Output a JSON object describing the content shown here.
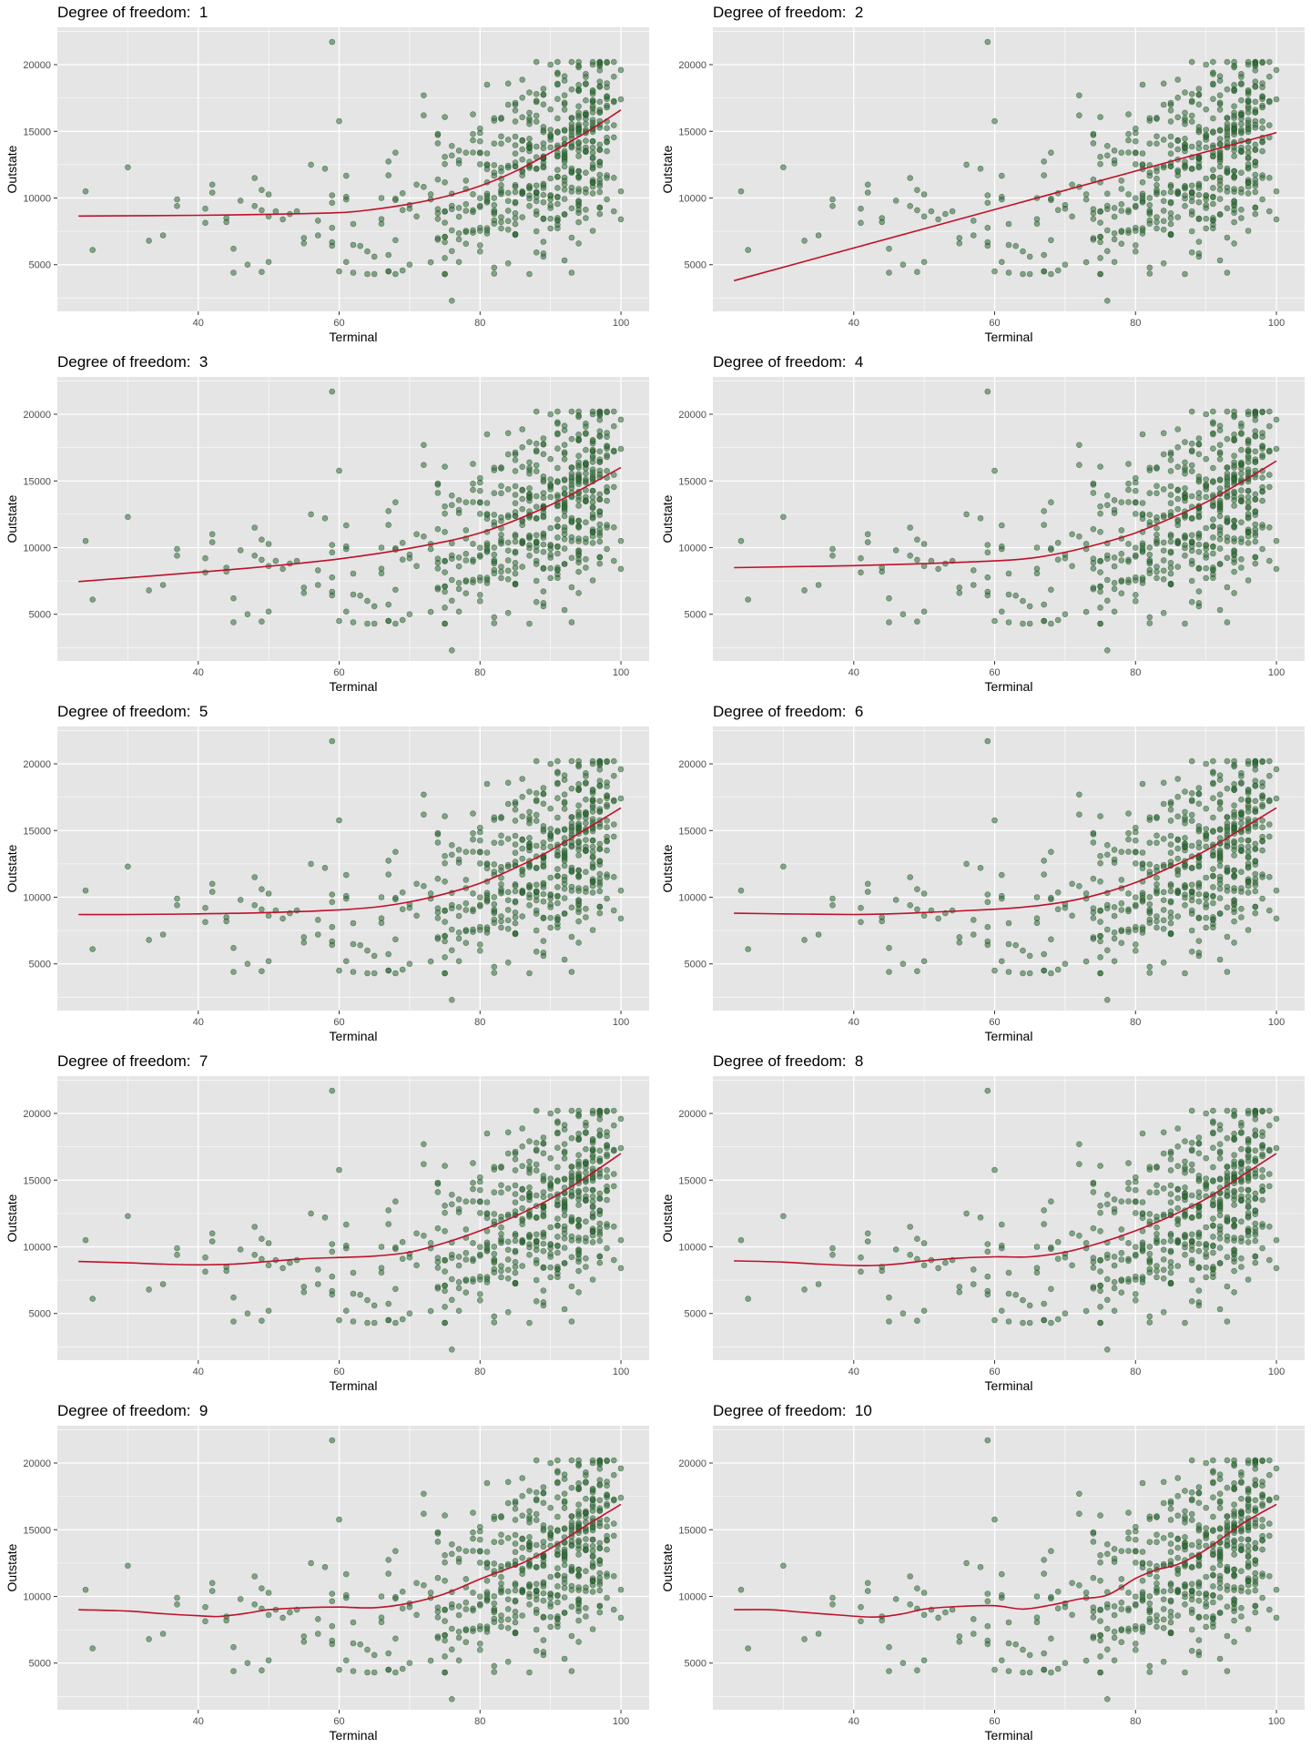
{
  "chart_data": {
    "type": "scatter",
    "xlabel": "Terminal",
    "ylabel": "Outstate",
    "title_prefix": "Degree of freedom:  ",
    "xlim": [
      20,
      104
    ],
    "ylim": [
      1500,
      22800
    ],
    "x_ticks": [
      40,
      60,
      80,
      100
    ],
    "y_ticks": [
      5000,
      10000,
      15000,
      20000
    ],
    "grid": true,
    "colors": {
      "panel": "#e5e5e5",
      "grid": "#ffffff",
      "points": "#2e6b35",
      "fit": "#c0102a"
    },
    "points_seed": 7,
    "points": [
      [
        24,
        10500
      ],
      [
        25,
        6100
      ],
      [
        30,
        12300
      ],
      [
        33,
        6800
      ],
      [
        35,
        7200
      ],
      [
        37,
        9900
      ],
      [
        37,
        9400
      ],
      [
        42,
        11000
      ],
      [
        42,
        10400
      ],
      [
        44,
        8500
      ],
      [
        45,
        4400
      ],
      [
        45,
        6200
      ],
      [
        46,
        9800
      ],
      [
        47,
        5000
      ],
      [
        48,
        11500
      ],
      [
        48,
        9400
      ],
      [
        50,
        5200
      ],
      [
        51,
        9000
      ],
      [
        52,
        8400
      ],
      [
        54,
        9000
      ],
      [
        55,
        7000
      ],
      [
        56,
        12500
      ],
      [
        57,
        8300
      ],
      [
        58,
        12200
      ],
      [
        59,
        21700
      ],
      [
        60,
        4500
      ],
      [
        61,
        5200
      ],
      [
        62,
        4400
      ],
      [
        64,
        6000
      ],
      [
        65,
        5600
      ],
      [
        66,
        10000
      ],
      [
        67,
        4500
      ],
      [
        68,
        13400
      ],
      [
        70,
        5000
      ],
      [
        71,
        11000
      ],
      [
        72,
        16200
      ],
      [
        74,
        14100
      ],
      [
        75,
        5500
      ],
      [
        76,
        2300
      ],
      [
        77,
        5200
      ],
      [
        79,
        14800
      ],
      [
        81,
        18500
      ],
      [
        82,
        15800
      ],
      [
        83,
        12000
      ],
      [
        84,
        5100
      ],
      [
        86,
        10500
      ],
      [
        88,
        17200
      ],
      [
        89,
        5600
      ],
      [
        90,
        20000
      ],
      [
        91,
        19400
      ],
      [
        92,
        18800
      ],
      [
        93,
        4400
      ],
      [
        93,
        16000
      ],
      [
        94,
        19800
      ],
      [
        95,
        19300
      ],
      [
        96,
        20000
      ],
      [
        97,
        19900
      ],
      [
        98,
        18600
      ],
      [
        99,
        20200
      ],
      [
        100,
        19600
      ],
      [
        100,
        17400
      ],
      [
        100,
        10500
      ],
      [
        100,
        8400
      ],
      [
        99,
        9000
      ],
      [
        97,
        8800
      ],
      [
        95,
        8500
      ],
      [
        91,
        8300
      ],
      [
        88,
        9000
      ],
      [
        85,
        8500
      ],
      [
        79,
        7400
      ],
      [
        77,
        6900
      ],
      [
        63,
        6400
      ],
      [
        57,
        7200
      ],
      [
        53,
        8800
      ],
      [
        49,
        10600
      ],
      [
        44,
        8200
      ],
      [
        41,
        9200
      ]
    ],
    "fits": [
      {
        "df": 1,
        "x": [
          23,
          40,
          50,
          60,
          65,
          70,
          75,
          80,
          85,
          90,
          95,
          100
        ],
        "y": [
          8650,
          8700,
          8780,
          8900,
          9150,
          9550,
          10100,
          10900,
          12000,
          13400,
          14900,
          16600
        ]
      },
      {
        "df": 2,
        "x": [
          23,
          100
        ],
        "y": [
          3800,
          14900
        ]
      },
      {
        "df": 3,
        "x": [
          23,
          40,
          50,
          60,
          70,
          80,
          90,
          100
        ],
        "y": [
          7450,
          8150,
          8600,
          9150,
          9950,
          11100,
          13200,
          16000
        ]
      },
      {
        "df": 4,
        "x": [
          23,
          40,
          50,
          60,
          65,
          70,
          75,
          80,
          85,
          90,
          95,
          100
        ],
        "y": [
          8500,
          8650,
          8800,
          9000,
          9200,
          9650,
          10300,
          11100,
          12200,
          13400,
          14900,
          16500
        ]
      },
      {
        "df": 5,
        "x": [
          23,
          30,
          40,
          50,
          60,
          65,
          70,
          75,
          80,
          85,
          90,
          95,
          100
        ],
        "y": [
          8700,
          8700,
          8750,
          8850,
          9050,
          9250,
          9650,
          10250,
          11050,
          12200,
          13500,
          15100,
          16700
        ]
      },
      {
        "df": 6,
        "x": [
          23,
          30,
          40,
          45,
          50,
          60,
          65,
          70,
          75,
          80,
          85,
          90,
          95,
          100
        ],
        "y": [
          8800,
          8750,
          8700,
          8750,
          8850,
          9100,
          9300,
          9650,
          10250,
          11100,
          12250,
          13500,
          15100,
          16700
        ]
      },
      {
        "df": 7,
        "x": [
          23,
          30,
          35,
          40,
          45,
          50,
          55,
          60,
          65,
          70,
          75,
          80,
          85,
          90,
          95,
          100
        ],
        "y": [
          8900,
          8800,
          8700,
          8650,
          8700,
          8900,
          9100,
          9200,
          9300,
          9600,
          10300,
          11200,
          12300,
          13600,
          15200,
          17000
        ]
      },
      {
        "df": 8,
        "x": [
          23,
          30,
          35,
          40,
          43,
          47,
          50,
          55,
          60,
          65,
          70,
          75,
          80,
          85,
          90,
          95,
          100
        ],
        "y": [
          8950,
          8850,
          8700,
          8600,
          8600,
          8750,
          8950,
          9150,
          9250,
          9250,
          9600,
          10300,
          11200,
          12300,
          13600,
          15300,
          17000
        ]
      },
      {
        "df": 9,
        "x": [
          23,
          30,
          35,
          40,
          43,
          47,
          50,
          55,
          60,
          65,
          70,
          75,
          80,
          83,
          86,
          90,
          95,
          100
        ],
        "y": [
          9000,
          8900,
          8700,
          8550,
          8500,
          8750,
          9000,
          9150,
          9200,
          9150,
          9500,
          10200,
          11300,
          11900,
          12500,
          13600,
          15300,
          16900
        ]
      },
      {
        "df": 10,
        "x": [
          23,
          28,
          33,
          38,
          43,
          47,
          50,
          55,
          60,
          64,
          68,
          72,
          76,
          80,
          83,
          86,
          90,
          95,
          100
        ],
        "y": [
          9000,
          9000,
          8800,
          8600,
          8450,
          8700,
          9050,
          9250,
          9300,
          9050,
          9350,
          9800,
          10100,
          11350,
          12000,
          12400,
          13500,
          15400,
          16900
        ]
      }
    ]
  }
}
